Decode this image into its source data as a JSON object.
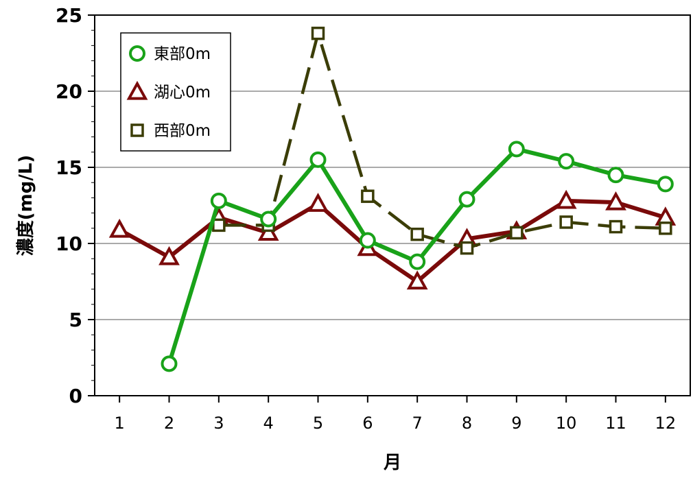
{
  "chart_data": {
    "type": "line",
    "title": "",
    "xlabel": "月",
    "ylabel": "濃度(mg/L)",
    "categories": [
      "1",
      "2",
      "3",
      "4",
      "5",
      "6",
      "7",
      "8",
      "9",
      "10",
      "11",
      "12"
    ],
    "ylim": [
      0,
      25
    ],
    "yticks": [
      "0",
      "5",
      "10",
      "15",
      "20",
      "25"
    ],
    "grid": true,
    "legend_position": "top-left",
    "series": [
      {
        "name": "東部0m",
        "color": "#19a219",
        "marker": "circle",
        "dash": "solid",
        "values": [
          null,
          2.1,
          12.8,
          11.6,
          15.5,
          10.2,
          8.8,
          12.9,
          16.2,
          15.4,
          14.5,
          13.9
        ]
      },
      {
        "name": "湖心0m",
        "color": "#7a0a0a",
        "marker": "triangle",
        "dash": "solid",
        "values": [
          10.9,
          9.1,
          11.7,
          10.7,
          12.6,
          9.7,
          7.5,
          10.3,
          10.8,
          12.8,
          12.7,
          11.7
        ]
      },
      {
        "name": "西部0m",
        "color": "#3b3d07",
        "marker": "square",
        "dash": "dashed",
        "values": [
          null,
          null,
          11.2,
          11.2,
          23.8,
          13.1,
          10.6,
          9.7,
          10.7,
          11.4,
          11.1,
          11.0
        ]
      }
    ]
  }
}
